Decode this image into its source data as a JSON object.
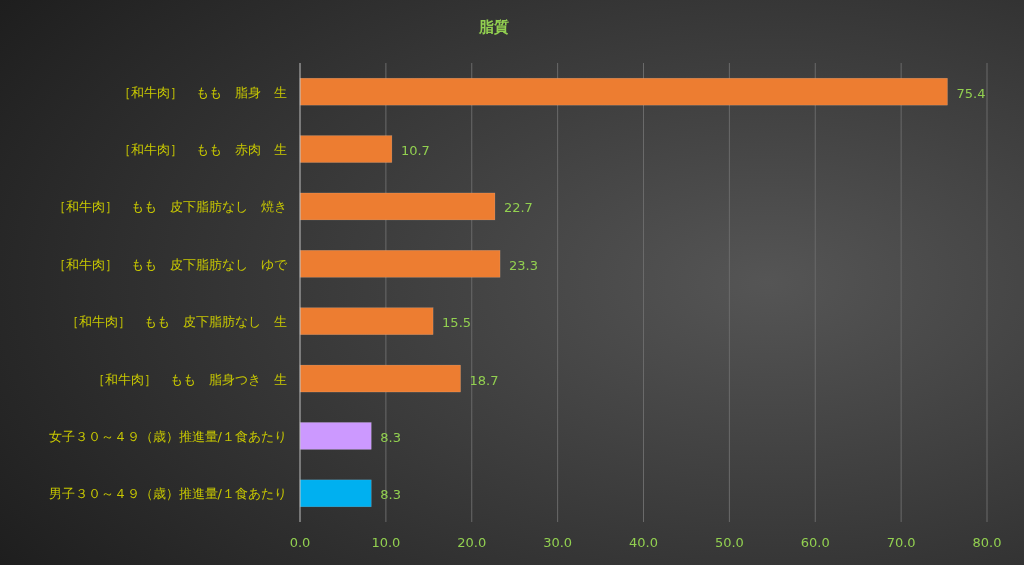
{
  "chart_data": {
    "type": "bar",
    "orientation": "horizontal",
    "title": "脂質",
    "categories": [
      "［和牛肉］　もも　脂身　生",
      "［和牛肉］　もも　赤肉　生",
      "［和牛肉］　もも　皮下脂肪なし　焼き",
      "［和牛肉］　もも　皮下脂肪なし　ゆで",
      "［和牛肉］　もも　皮下脂肪なし　生",
      "［和牛肉］　もも　脂身つき　生",
      "女子３０～４９（歳）推進量/１食あたり",
      "男子３０～４９（歳）推進量/１食あたり"
    ],
    "values": [
      75.4,
      10.7,
      22.7,
      23.3,
      15.5,
      18.7,
      8.3,
      8.3
    ],
    "colors": [
      "#ed7d31",
      "#ed7d31",
      "#ed7d31",
      "#ed7d31",
      "#ed7d31",
      "#ed7d31",
      "#cc99ff",
      "#00b0f0"
    ],
    "xlim": [
      0,
      80
    ],
    "xticks": [
      {
        "value": 0,
        "label": "0.0"
      },
      {
        "value": 10,
        "label": "10.0"
      },
      {
        "value": 20,
        "label": "20.0"
      },
      {
        "value": 30,
        "label": "30.0"
      },
      {
        "value": 40,
        "label": "40.0"
      },
      {
        "value": 50,
        "label": "50.0"
      },
      {
        "value": 60,
        "label": "60.0"
      },
      {
        "value": 70,
        "label": "70.0"
      },
      {
        "value": 80,
        "label": "80.0"
      }
    ],
    "grid": "x",
    "data_labels": true
  }
}
